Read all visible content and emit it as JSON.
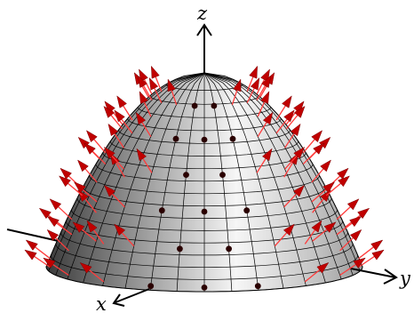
{
  "figure": {
    "axes": {
      "x_label": "x",
      "y_label": "y",
      "z_label": "z"
    },
    "surface": {
      "shape": "paraboloid",
      "equation_shown": false,
      "meridians": 36,
      "parallels": 17,
      "shading_dark": "#3a3a3a",
      "shading_light": "#f6f6f6",
      "grid_color": "#000000"
    },
    "normal_vectors": {
      "description_shown": false,
      "shaft_color": "#ff3b3b",
      "head_color": "#c00000",
      "dot_color": "#2a0000",
      "parallels_with_vectors": 6,
      "vectors_per_parallel": 18
    }
  }
}
